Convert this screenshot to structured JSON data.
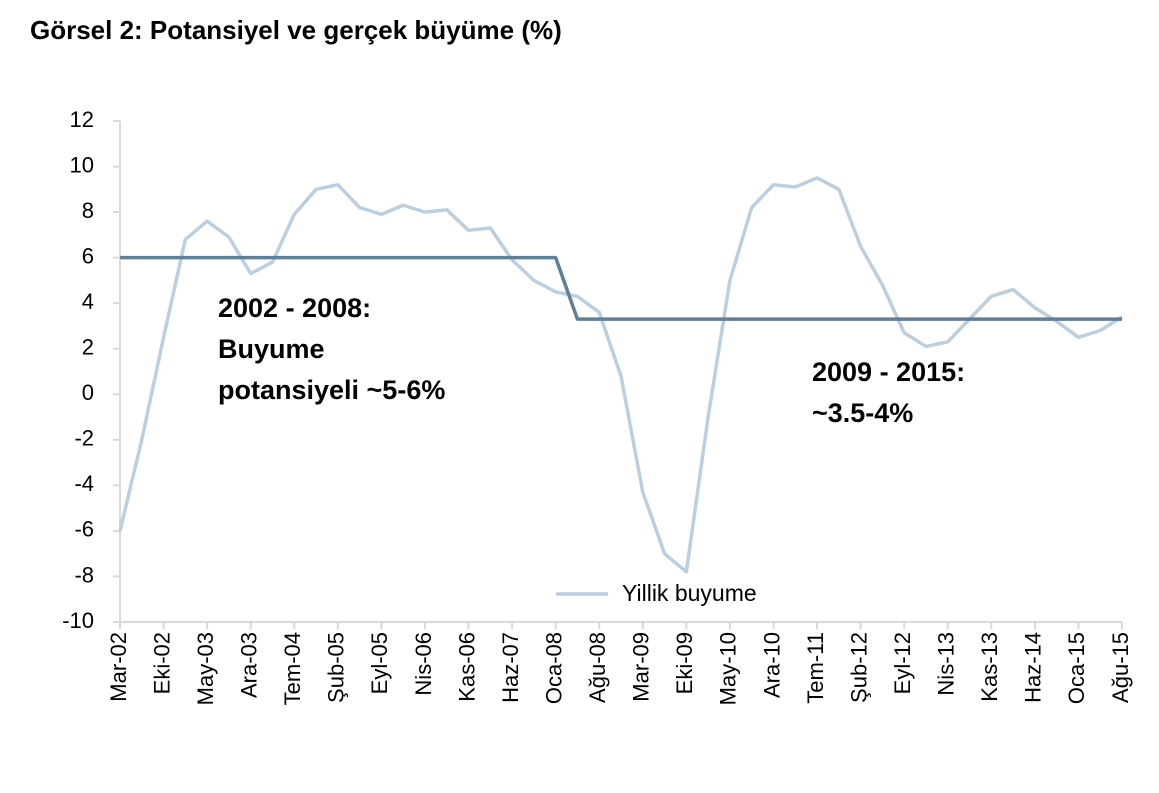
{
  "chart_data": {
    "type": "line",
    "title": "Görsel 2: Potansiyel ve gerçek büyüme (%)",
    "categories": [
      "Mar-02",
      null,
      "Eki-02",
      null,
      "May-03",
      null,
      "Ara-03",
      null,
      "Tem-04",
      null,
      "Şub-05",
      null,
      "Eyl-05",
      null,
      "Nis-06",
      null,
      "Kas-06",
      null,
      "Haz-07",
      null,
      "Oca-08",
      null,
      "Ağu-08",
      null,
      "Mar-09",
      null,
      "Eki-09",
      null,
      "May-10",
      null,
      "Ara-10",
      null,
      "Tem-11",
      null,
      "Şub-12",
      null,
      "Eyl-12",
      null,
      "Nis-13",
      null,
      "Kas-13",
      null,
      "Haz-14",
      null,
      "Oca-15",
      null,
      "Ağu-15"
    ],
    "series": [
      {
        "name": "Yillik buyume",
        "color": "#bccfde",
        "values": [
          -6,
          -2,
          2.5,
          6.8,
          7.6,
          6.9,
          5.3,
          5.8,
          7.9,
          9.0,
          9.2,
          8.2,
          7.9,
          8.3,
          8.0,
          8.1,
          7.2,
          7.3,
          5.9,
          5.0,
          4.5,
          4.3,
          3.6,
          0.8,
          -4.3,
          -7.0,
          -7.8,
          -1,
          5.0,
          8.2,
          9.2,
          9.1,
          9.5,
          9.0,
          6.5,
          4.8,
          2.7,
          2.1,
          2.3,
          3.3,
          4.3,
          4.6,
          3.8,
          3.2,
          2.5,
          2.8,
          3.4
        ]
      },
      {
        "color": "#5f7e98",
        "values": [
          6,
          6,
          6,
          6,
          6,
          6,
          6,
          6,
          6,
          6,
          6,
          6,
          6,
          6,
          6,
          6,
          6,
          6,
          6,
          6,
          6,
          3.3,
          3.3,
          3.3,
          3.3,
          3.3,
          3.3,
          3.3,
          3.3,
          3.3,
          3.3,
          3.3,
          3.3,
          3.3,
          3.3,
          3.3,
          3.3,
          3.3,
          3.3,
          3.3,
          3.3,
          3.3,
          3.3,
          3.3,
          3.3,
          3.3,
          3.3
        ]
      }
    ],
    "ylim": [
      -10,
      12
    ],
    "yticks": [
      -10,
      -8,
      -6,
      -4,
      -2,
      0,
      2,
      4,
      6,
      8,
      10,
      12
    ],
    "annotations": [
      {
        "lines": [
          "2002 - 2008:",
          "Buyume",
          "potansiyeli  ~5-6%"
        ]
      },
      {
        "lines": [
          "2009 - 2015:",
          "~3.5-4%"
        ]
      }
    ],
    "grid": false
  }
}
